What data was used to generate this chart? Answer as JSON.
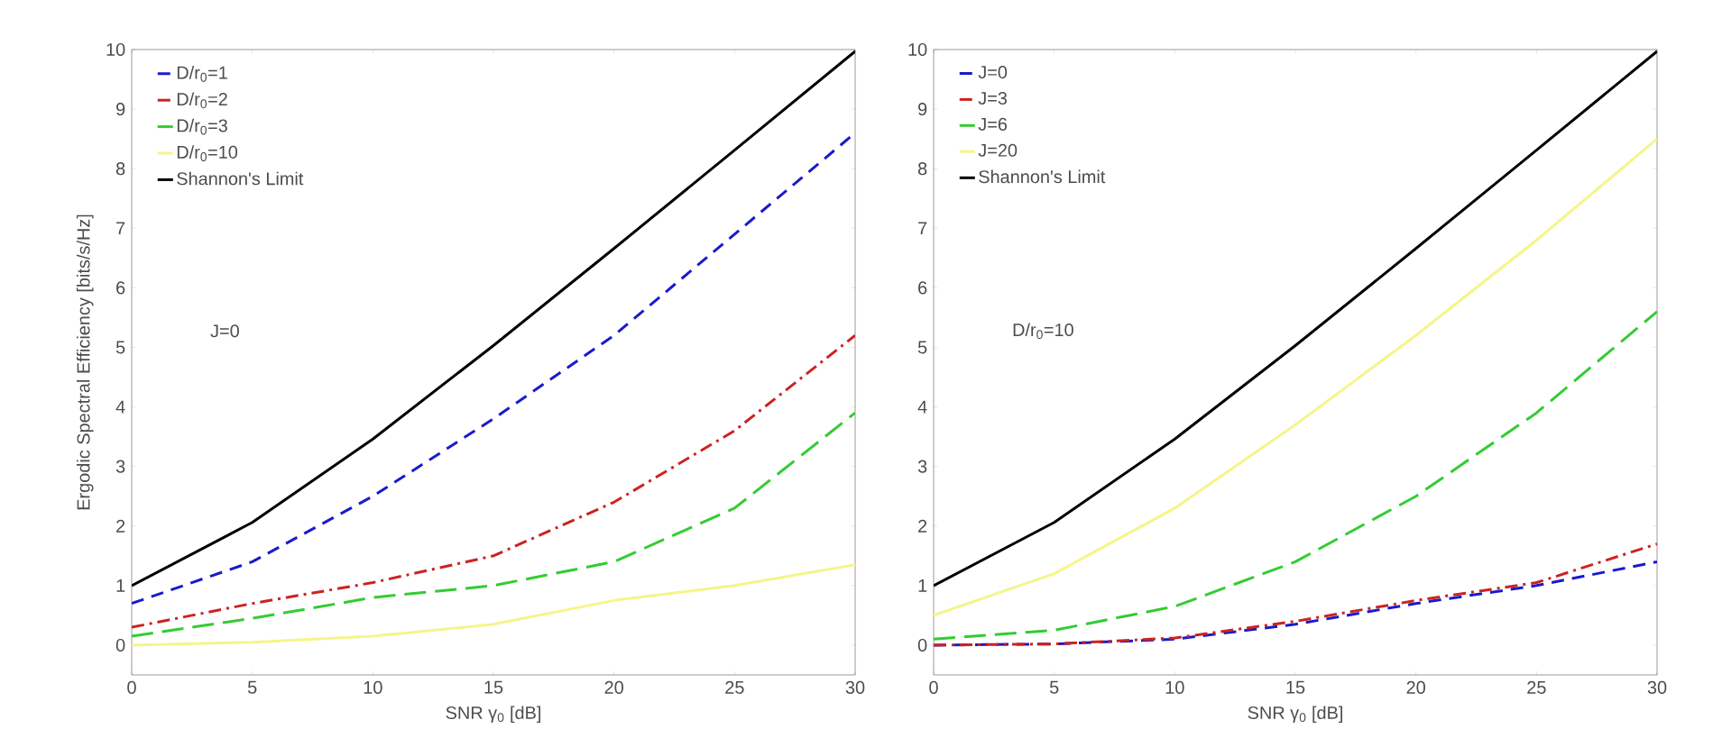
{
  "chart_data": [
    {
      "type": "line",
      "xlabel": "SNR γ$_{0}$ [dB]",
      "ylabel": "Ergodic Spectral Efficiency [bits/s/Hz]",
      "xlim": [
        0,
        30
      ],
      "ylim": [
        -0.5,
        10
      ],
      "xticks": [
        0,
        5,
        10,
        15,
        20,
        25,
        30
      ],
      "yticks": [
        0,
        1,
        2,
        3,
        4,
        5,
        6,
        7,
        8,
        9,
        10
      ],
      "grid": false,
      "legend": "top left",
      "annotations": [
        "J=0"
      ],
      "x": [
        0,
        5,
        10,
        15,
        20,
        25,
        30
      ],
      "series": [
        {
          "name": "D/r$_{0}$=1",
          "color": "#1a1acc",
          "line_style": "dashed",
          "values": [
            0.7,
            1.4,
            2.5,
            3.8,
            5.2,
            6.9,
            8.6
          ]
        },
        {
          "name": "D/r$_{0}$=2",
          "color": "#cc2222",
          "line_style": "dashdot",
          "values": [
            0.3,
            0.7,
            1.05,
            1.5,
            2.4,
            3.6,
            5.2
          ]
        },
        {
          "name": "D/r$_{0}$=3",
          "color": "#33cc33",
          "line_style": "longdashed",
          "values": [
            0.15,
            0.45,
            0.8,
            1.0,
            1.4,
            2.3,
            3.9
          ]
        },
        {
          "name": "D/r$_{0}$=10",
          "color": "#f5f58a",
          "line_style": "solid",
          "values": [
            0.0,
            0.05,
            0.15,
            0.35,
            0.75,
            1.0,
            1.35
          ]
        },
        {
          "name": "Shannon's Limit",
          "color": "#000000",
          "line_style": "solid",
          "values": [
            1.0,
            2.06,
            3.46,
            5.03,
            6.66,
            8.31,
            9.97
          ]
        }
      ]
    },
    {
      "type": "line",
      "xlabel": "SNR γ$_{0}$ [dB]",
      "xlim": [
        0,
        30
      ],
      "ylim": [
        -0.5,
        10
      ],
      "xticks": [
        0,
        5,
        10,
        15,
        20,
        25,
        30
      ],
      "yticks": [
        0,
        1,
        2,
        3,
        4,
        5,
        6,
        7,
        8,
        9,
        10
      ],
      "grid": false,
      "legend": "top left",
      "annotations": [
        "D/r$_{0}$=10"
      ],
      "x": [
        0,
        5,
        10,
        15,
        20,
        25,
        30
      ],
      "series": [
        {
          "name": "J=0",
          "color": "#1a1acc",
          "line_style": "dashed",
          "values": [
            0.0,
            0.02,
            0.1,
            0.35,
            0.7,
            1.0,
            1.4
          ]
        },
        {
          "name": "J=3",
          "color": "#cc2222",
          "line_style": "dashdot",
          "values": [
            0.0,
            0.02,
            0.12,
            0.4,
            0.75,
            1.05,
            1.7
          ]
        },
        {
          "name": "J=6",
          "color": "#33cc33",
          "line_style": "longdashed",
          "values": [
            0.1,
            0.25,
            0.65,
            1.4,
            2.5,
            3.9,
            5.6
          ]
        },
        {
          "name": "J=20",
          "color": "#f5f58a",
          "line_style": "solid",
          "values": [
            0.5,
            1.2,
            2.3,
            3.7,
            5.2,
            6.8,
            8.5
          ]
        },
        {
          "name": "Shannon's Limit",
          "color": "#000000",
          "line_style": "solid",
          "values": [
            1.0,
            2.06,
            3.46,
            5.03,
            6.66,
            8.31,
            9.97
          ]
        }
      ]
    }
  ]
}
